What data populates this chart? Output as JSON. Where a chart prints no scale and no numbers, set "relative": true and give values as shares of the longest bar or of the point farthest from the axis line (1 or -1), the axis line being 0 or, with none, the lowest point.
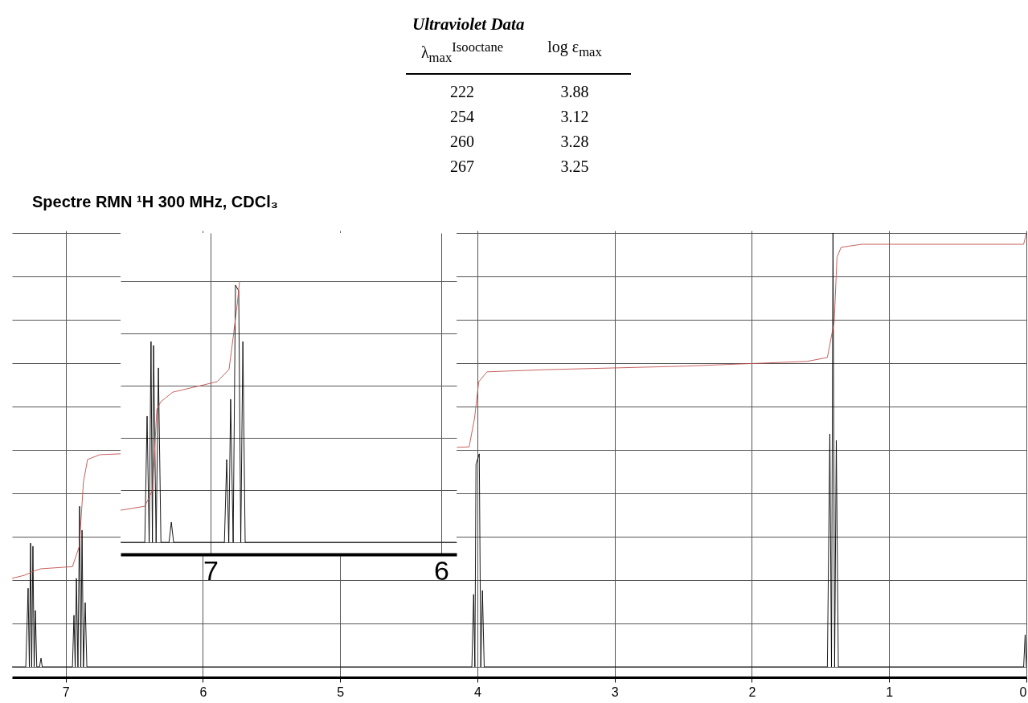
{
  "chart_data": [
    {
      "type": "line",
      "title": "Spectre RMN ¹H 300 MHz, CDCl₃",
      "relative": true,
      "grid": true,
      "xlim": [
        7.39,
        0
      ],
      "xticks": [
        7,
        6,
        5,
        4,
        3,
        2,
        1,
        0
      ],
      "series": [
        {
          "color": "#000000",
          "x": [
            7.39,
            7.29,
            7.273,
            7.264,
            7.255,
            7.247,
            7.238,
            7.229,
            7.22,
            7.21,
            7.19,
            7.179,
            7.17,
            6.95,
            6.939,
            6.93,
            6.921,
            6.91,
            6.898,
            6.889,
            6.88,
            6.87,
            6.857,
            6.845,
            4.04,
            4.027,
            4.018,
            4.01,
            3.986,
            3.975,
            3.963,
            3.95,
            1.45,
            1.432,
            1.42,
            1.409,
            1.397,
            1.385,
            1.37,
            0.02,
            0.009,
            0
          ],
          "values": [
            0,
            0,
            0.181,
            0,
            0.285,
            0,
            0.278,
            0,
            0.13,
            0,
            0,
            0.02,
            0,
            0,
            0.119,
            0,
            0.204,
            0,
            0.37,
            0,
            0.315,
            0,
            0.148,
            0,
            0,
            0.167,
            0,
            0.467,
            0.491,
            0,
            0.176,
            0,
            0,
            0.537,
            0,
            1,
            0,
            0.522,
            0,
            0,
            0.074,
            0
          ]
        },
        {
          "color": "#c0504d",
          "x": [
            7.39,
            7.3,
            7.22,
            7.18,
            6.95,
            6.9,
            6.87,
            6.84,
            6.75,
            6.6,
            5.5,
            4.15,
            4.06,
            4.02,
            3.99,
            3.93,
            3.5,
            2.5,
            1.6,
            1.45,
            1.4,
            1.38,
            1.35,
            1.2,
            0.02,
            0
          ],
          "values": [
            0.204,
            0.211,
            0.222,
            0.226,
            0.231,
            0.278,
            0.426,
            0.478,
            0.489,
            0.491,
            null,
            0.506,
            0.507,
            0.574,
            0.657,
            0.68,
            0.685,
            0.693,
            0.704,
            0.713,
            0.796,
            0.944,
            0.967,
            0.974,
            0.974,
            1
          ]
        }
      ]
    },
    {
      "type": "line",
      "relative": true,
      "grid": true,
      "xlim": [
        7.39,
        5.934
      ],
      "xticks": [
        7,
        6
      ],
      "series": [
        {
          "color": "#000000",
          "x": [
            7.39,
            7.285,
            7.275,
            7.266,
            7.258,
            7.252,
            7.247,
            7.236,
            7.226,
            7.215,
            7.18,
            7.17,
            7.16,
            6.94,
            6.93,
            6.921,
            6.913,
            6.902,
            6.892,
            6.878,
            6.869,
            6.86,
            6.85,
            5.934
          ],
          "values": [
            0,
            0,
            0.483,
            0,
            0.769,
            0,
            0.754,
            0,
            0.668,
            0,
            0,
            0.077,
            0,
            0,
            0.317,
            0,
            0.548,
            0,
            0.985,
            0.963,
            0,
            0.769,
            0,
            0
          ]
        },
        {
          "color": "#c0504d",
          "x": [
            7.39,
            7.285,
            7.251,
            7.233,
            7.216,
            7.164,
            6.972,
            6.92,
            6.902,
            6.885,
            6.874
          ],
          "values": [
            0.123,
            0.138,
            0.2,
            0.508,
            0.538,
            0.575,
            0.615,
            0.662,
            0.785,
            0.908,
            1
          ]
        }
      ]
    },
    {
      "type": "other",
      "title": "Ultraviolet Data",
      "annotations": [
        "λ$_{max}$$^{Isooctane}$",
        "log ε$_{max}$",
        "222",
        "3.88",
        "254",
        "3.12",
        "260",
        "3.28",
        "267",
        "3.25"
      ]
    }
  ]
}
